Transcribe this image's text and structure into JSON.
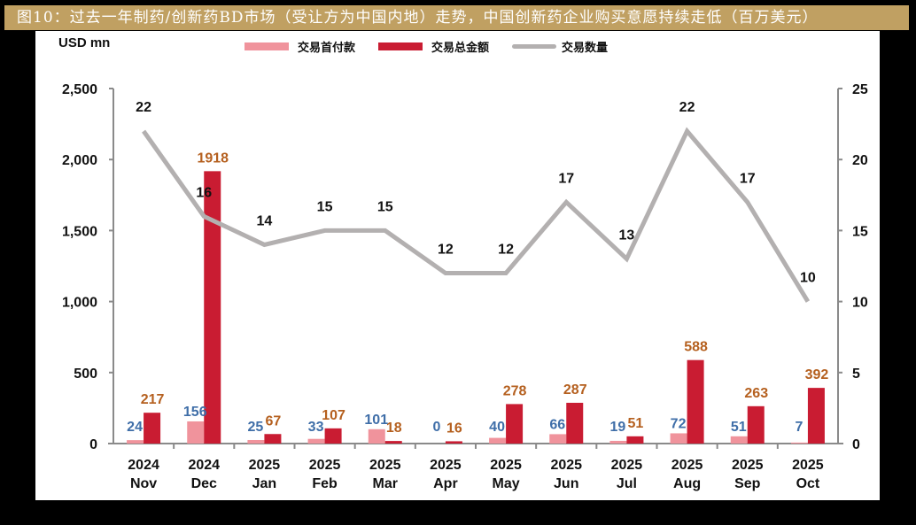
{
  "title": "图10：过去一年制药/创新药BD市场（受让方为中国内地）走势，中国创新药企业购买意愿持续走低（百万美元）",
  "colors": {
    "title_bg": "#c0a062",
    "upfront": "#f0939c",
    "total": "#c91c32",
    "count_line": "#b3b0b0",
    "upfront_label": "#3f6ea8",
    "total_label": "#b5601f",
    "axis": "#8a8a8a"
  },
  "chart_data": {
    "type": "bar",
    "title": "过去一年制药/创新药BD市场（受让方为中国内地）走势，中国创新药企业购买意愿持续走低（百万美元）",
    "ylabel": "USD mn",
    "ylim": [
      0,
      2500
    ],
    "yticks": [
      "0",
      "500",
      "1,000",
      "1,500",
      "2,000",
      "2,500"
    ],
    "y2lim": [
      0,
      25
    ],
    "y2ticks": [
      "0",
      "5",
      "10",
      "15",
      "20",
      "25"
    ],
    "grid": false,
    "legend_position": "top",
    "categories": [
      "2024 Nov",
      "2024 Dec",
      "2025 Jan",
      "2025 Feb",
      "2025 Mar",
      "2025 Apr",
      "2025 May",
      "2025 Jun",
      "2025 Jul",
      "2025 Aug",
      "2025 Sep",
      "2025 Oct"
    ],
    "category_lines": [
      [
        "2024",
        "Nov"
      ],
      [
        "2024",
        "Dec"
      ],
      [
        "2025",
        "Jan"
      ],
      [
        "2025",
        "Feb"
      ],
      [
        "2025",
        "Mar"
      ],
      [
        "2025",
        "Apr"
      ],
      [
        "2025",
        "May"
      ],
      [
        "2025",
        "Jun"
      ],
      [
        "2025",
        "Jul"
      ],
      [
        "2025",
        "Aug"
      ],
      [
        "2025",
        "Sep"
      ],
      [
        "2025",
        "Oct"
      ]
    ],
    "series": [
      {
        "name": "交易首付款",
        "type": "bar",
        "axis": "left",
        "values": [
          24,
          156,
          25,
          33,
          101,
          0,
          40,
          66,
          19,
          72,
          51,
          7
        ]
      },
      {
        "name": "交易总金额",
        "type": "bar",
        "axis": "left",
        "values": [
          217,
          1918,
          67,
          107,
          18,
          16,
          278,
          287,
          51,
          588,
          263,
          392
        ]
      },
      {
        "name": "交易数量",
        "type": "line",
        "axis": "right",
        "values": [
          22,
          16,
          14,
          15,
          15,
          12,
          12,
          17,
          13,
          22,
          17,
          10
        ]
      }
    ]
  }
}
